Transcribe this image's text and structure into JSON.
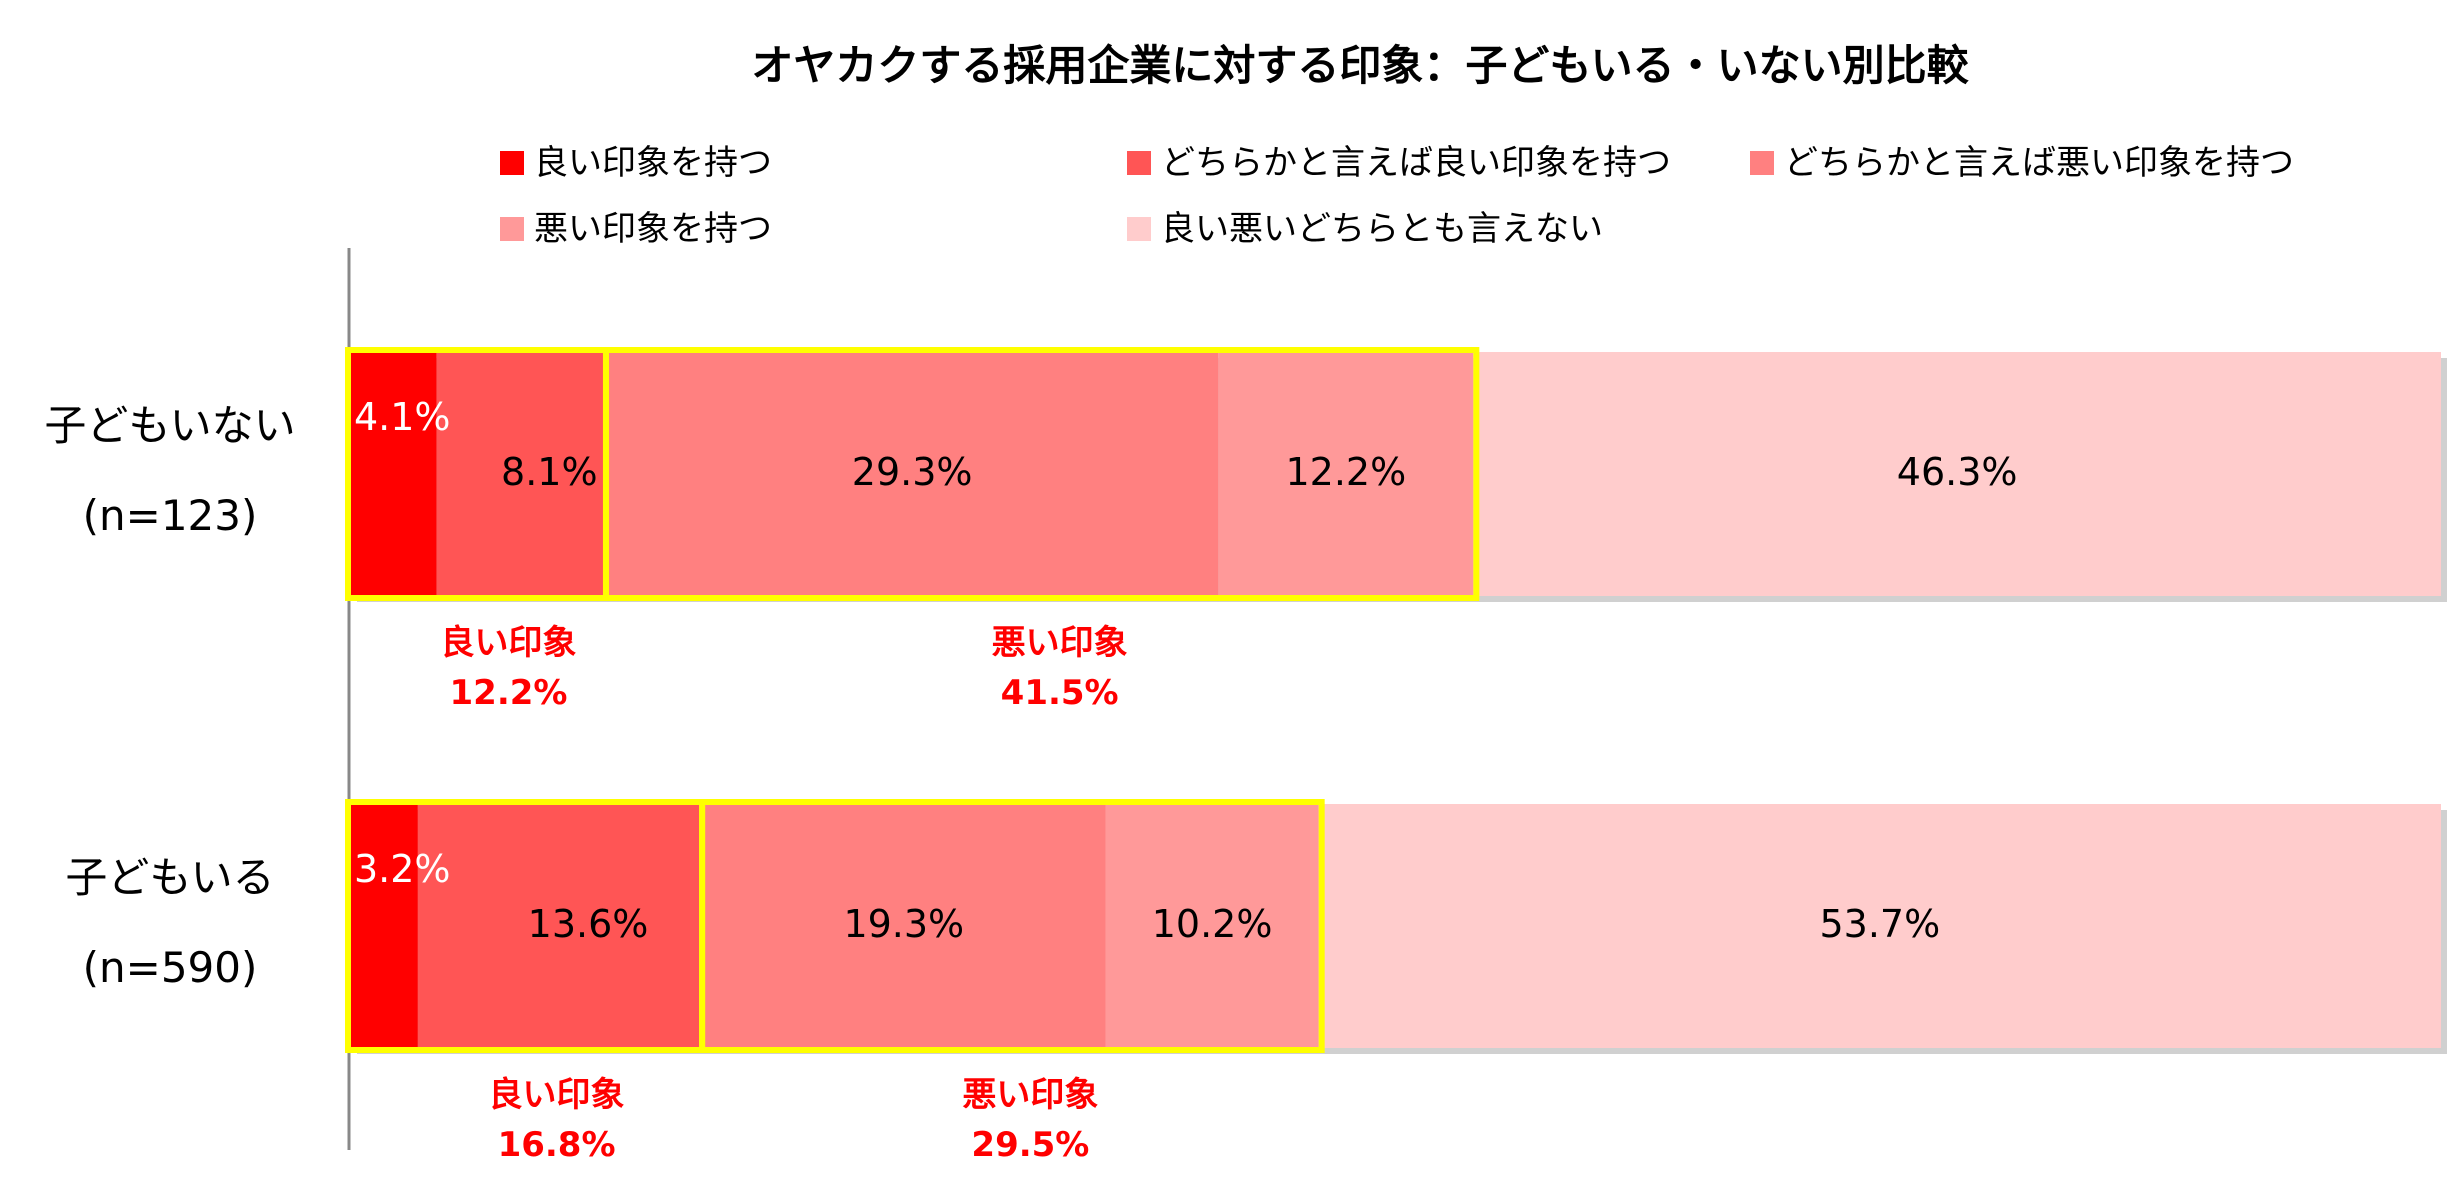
{
  "chart_data": {
    "type": "bar",
    "orientation": "horizontal",
    "stacked": true,
    "title": "オヤカクする採用企業に対する印象：子どもいる・いない別比較",
    "categories": [
      {
        "name": "子どもいない",
        "n": "(n=123)"
      },
      {
        "name": "子どもいる",
        "n": "(n=590)"
      }
    ],
    "series": [
      {
        "name": "良い印象を持つ",
        "color": "#FF0000",
        "values": [
          4.1,
          3.2
        ],
        "labels": [
          "4.1%",
          "3.2%"
        ]
      },
      {
        "name": "どちらかと言えば良い印象を持つ",
        "color": "#FF5555",
        "values": [
          8.1,
          13.6
        ],
        "labels": [
          "8.1%",
          "13.6%"
        ]
      },
      {
        "name": "どちらかと言えば悪い印象を持つ",
        "color": "#FF8080",
        "values": [
          29.3,
          19.3
        ],
        "labels": [
          "29.3%",
          "19.3%"
        ]
      },
      {
        "name": "悪い印象を持つ",
        "color": "#FF9999",
        "values": [
          12.2,
          10.2
        ],
        "labels": [
          "12.2%",
          "10.2%"
        ]
      },
      {
        "name": "良い悪いどちらとも言えない",
        "color": "#FFCCCC",
        "values": [
          46.3,
          53.7
        ],
        "labels": [
          "46.3%",
          "53.7%"
        ]
      }
    ],
    "groups": [
      {
        "highlight_color": "#FFFF00",
        "good": {
          "label": "良い印象",
          "value": "12.2%"
        },
        "bad": {
          "label": "悪い印象",
          "value": "41.5%"
        }
      },
      {
        "highlight_color": "#FFFF00",
        "good": {
          "label": "良い印象",
          "value": "16.8%"
        },
        "bad": {
          "label": "悪い印象",
          "value": "29.5%"
        }
      }
    ],
    "xlim": [
      0,
      100
    ],
    "grid": false,
    "legend_position": "top"
  }
}
